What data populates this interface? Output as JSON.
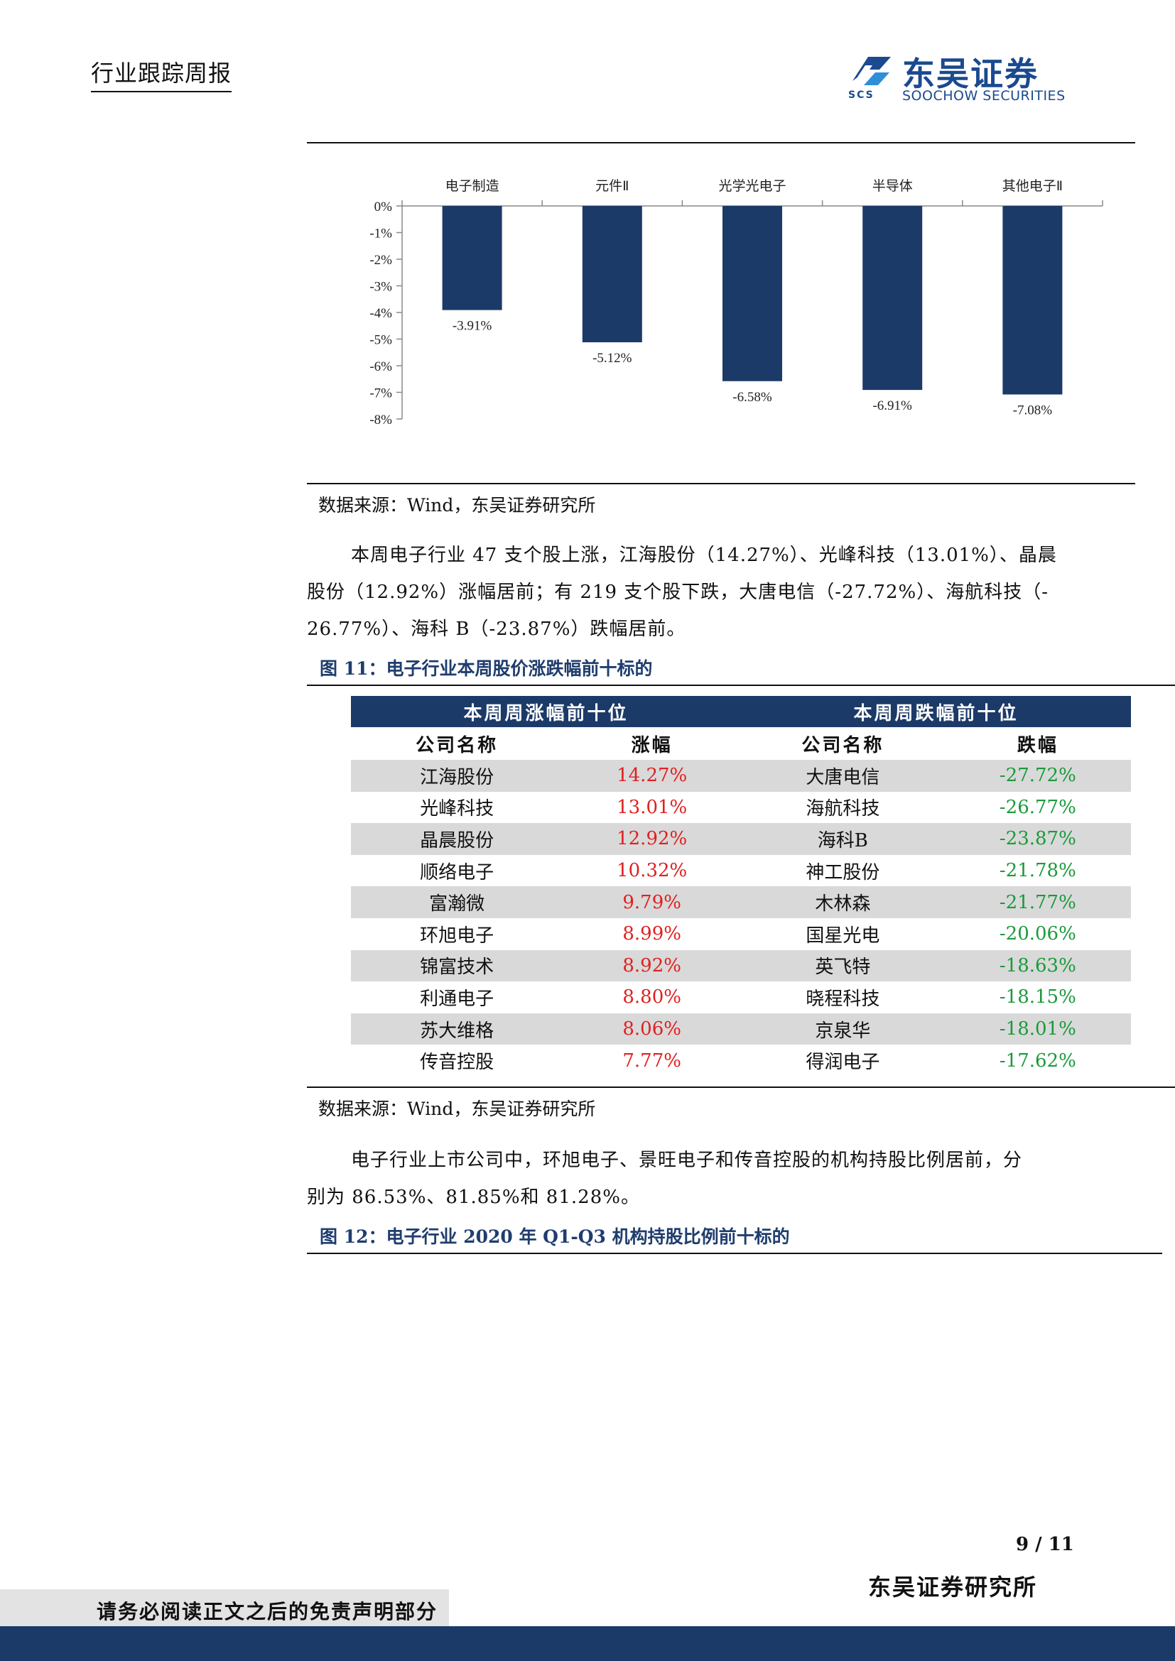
{
  "header": {
    "title": "行业跟踪周报",
    "logo_cn": "东吴证券",
    "logo_en": "SOOCHOW SECURITIES",
    "logo_scs": "SCS"
  },
  "chart_data": {
    "type": "bar",
    "categories": [
      "电子制造",
      "元件Ⅱ",
      "光学光电子",
      "半导体",
      "其他电子Ⅱ"
    ],
    "values": [
      -3.91,
      -5.12,
      -6.58,
      -6.91,
      -7.08
    ],
    "value_labels": [
      "-3.91%",
      "-5.12%",
      "-6.58%",
      "-6.91%",
      "-7.08%"
    ],
    "ylim": [
      -8,
      0
    ],
    "yticks": [
      "0%",
      "-1%",
      "-2%",
      "-3%",
      "-4%",
      "-5%",
      "-6%",
      "-7%",
      "-8%"
    ],
    "bar_color": "#1c3a68",
    "xaxis_position": "top",
    "grid": false
  },
  "source1": "数据来源：Wind，东吴证券研究所",
  "paragraph1": {
    "line1": "本周电子行业 47 支个股上涨，江海股份（14.27%）、光峰科技（13.01%）、晶晨",
    "line2": "股份（12.92%）涨幅居前；有 219 支个股下跌，大唐电信（-27.72%）、海航科技（-",
    "line3": "26.77%）、海科 B（-23.87%）跌幅居前。"
  },
  "figure11_caption": "图 11：电子行业本周股价涨跌幅前十标的",
  "table": {
    "group_up": "本周周涨幅前十位",
    "group_down": "本周周跌幅前十位",
    "col_company": "公司名称",
    "col_up": "涨幅",
    "col_company2": "公司名称",
    "col_down": "跌幅",
    "rows": [
      {
        "up_name": "江海股份",
        "up_pct": "14.27%",
        "down_name": "大唐电信",
        "down_pct": "-27.72%"
      },
      {
        "up_name": "光峰科技",
        "up_pct": "13.01%",
        "down_name": "海航科技",
        "down_pct": "-26.77%"
      },
      {
        "up_name": "晶晨股份",
        "up_pct": "12.92%",
        "down_name": "海科B",
        "down_pct": "-23.87%"
      },
      {
        "up_name": "顺络电子",
        "up_pct": "10.32%",
        "down_name": "神工股份",
        "down_pct": "-21.78%"
      },
      {
        "up_name": "富瀚微",
        "up_pct": "9.79%",
        "down_name": "木林森",
        "down_pct": "-21.77%"
      },
      {
        "up_name": "环旭电子",
        "up_pct": "8.99%",
        "down_name": "国星光电",
        "down_pct": "-20.06%"
      },
      {
        "up_name": "锦富技术",
        "up_pct": "8.92%",
        "down_name": "英飞特",
        "down_pct": "-18.63%"
      },
      {
        "up_name": "利通电子",
        "up_pct": "8.80%",
        "down_name": "晓程科技",
        "down_pct": "-18.15%"
      },
      {
        "up_name": "苏大维格",
        "up_pct": "8.06%",
        "down_name": "京泉华",
        "down_pct": "-18.01%"
      },
      {
        "up_name": "传音控股",
        "up_pct": "7.77%",
        "down_name": "得润电子",
        "down_pct": "-17.62%"
      }
    ]
  },
  "source2": "数据来源：Wind，东吴证券研究所",
  "paragraph2": {
    "line1": "电子行业上市公司中，环旭电子、景旺电子和传音控股的机构持股比例居前，分",
    "line2": "别为 86.53%、81.85%和 81.28%。"
  },
  "figure12_caption": "图 12：电子行业 2020 年 Q1-Q3 机构持股比例前十标的",
  "footer": {
    "page": "9 / 11",
    "org": "东吴证券研究所",
    "disclaimer": "请务必阅读正文之后的免责声明部分"
  },
  "colors": {
    "navy": "#1c3a68",
    "up": "#e02020",
    "down": "#1a9a3a",
    "caption": "#1f3d6e"
  }
}
